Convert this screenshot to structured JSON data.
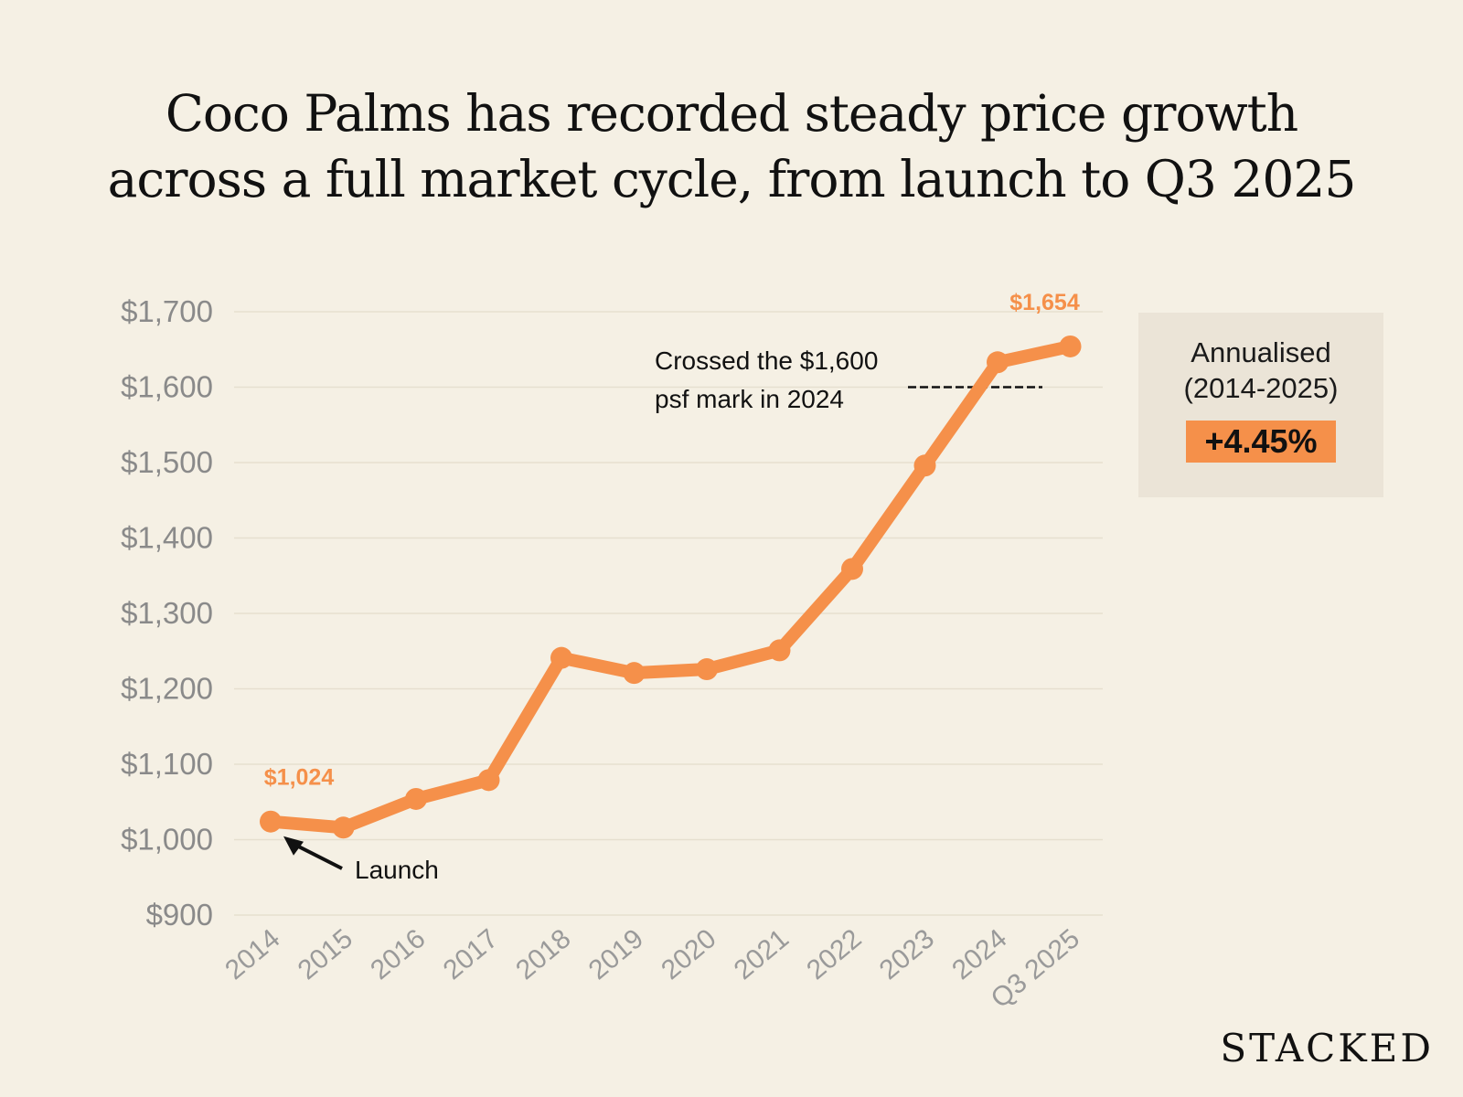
{
  "title_lines": [
    "Coco Palms has recorded steady price growth",
    "across a full market cycle, from launch to Q3 2025"
  ],
  "side_box": {
    "label_line1": "Annualised",
    "label_line2": "(2014-2025)",
    "value": "+4.45%",
    "accent_color": "#f5904a"
  },
  "brand": "STACKED",
  "chart_data": {
    "type": "line",
    "title": "Coco Palms has recorded steady price growth across a full market cycle, from launch to Q3 2025",
    "xlabel": "",
    "ylabel": "",
    "categories": [
      "2014",
      "2015",
      "2016",
      "2017",
      "2018",
      "2019",
      "2020",
      "2021",
      "2022",
      "2023",
      "2024",
      "Q3 2025"
    ],
    "series": [
      {
        "values": [
          1024,
          1016,
          1054,
          1079,
          1241,
          1221,
          1226,
          1251,
          1359,
          1496,
          1633,
          1654
        ],
        "color": "#f5904a"
      }
    ],
    "ylim": [
      900,
      1700
    ],
    "yticks": [
      900,
      1000,
      1100,
      1200,
      1300,
      1400,
      1500,
      1600,
      1700
    ],
    "ytick_labels": [
      "$900",
      "$1,000",
      "$1,100",
      "$1,200",
      "$1,300",
      "$1,400",
      "$1,500",
      "$1,600",
      "$1,700"
    ],
    "grid": true,
    "data_labels": [
      {
        "category": "2014",
        "text": "$1,024"
      },
      {
        "category": "Q3 2025",
        "text": "$1,654"
      }
    ],
    "annotations": {
      "threshold_value": 1600,
      "threshold_text_line1": "Crossed the $1,600",
      "threshold_text_line2": "psf mark in 2024",
      "launch_text": "Launch"
    }
  }
}
